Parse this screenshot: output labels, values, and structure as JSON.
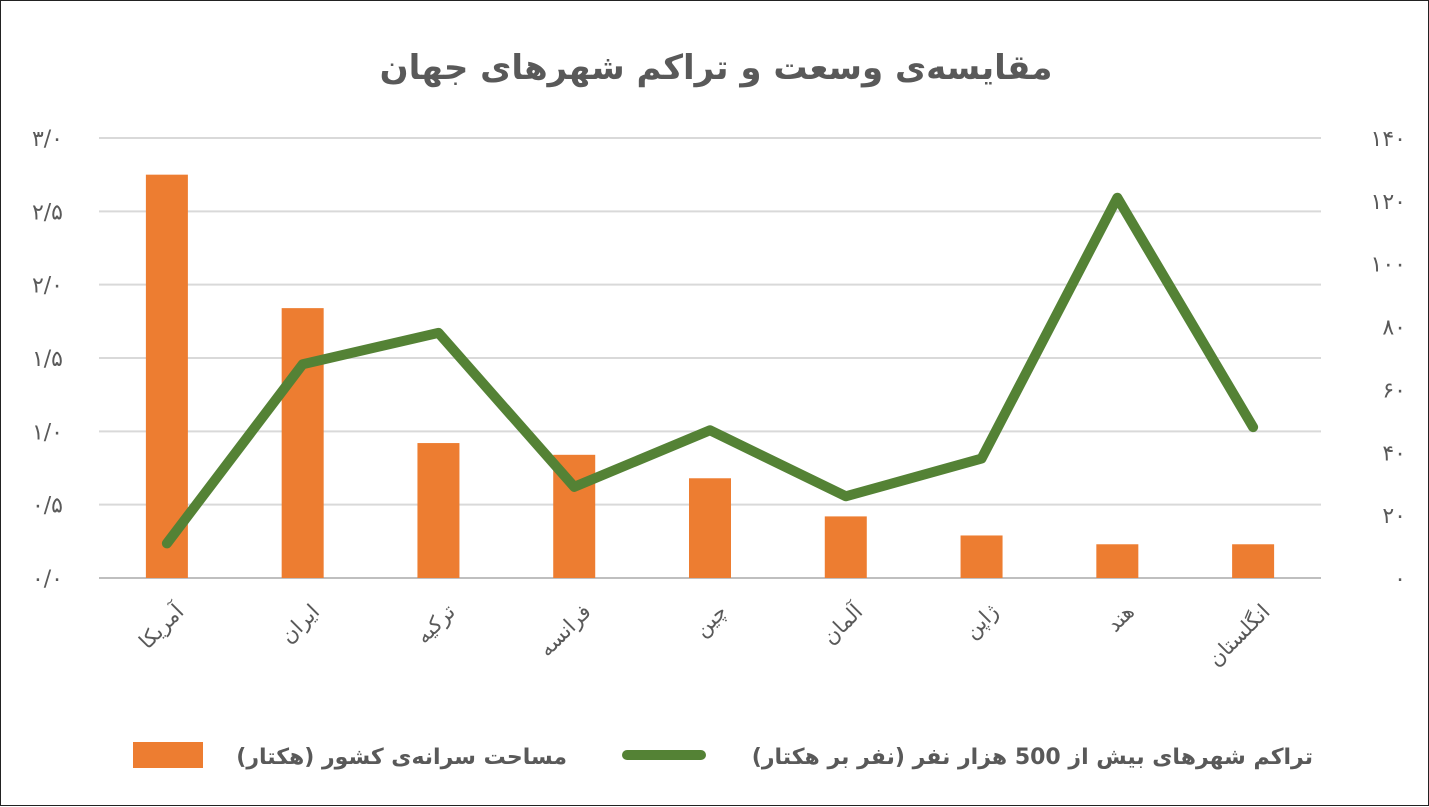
{
  "chart_data": {
    "type": "bar",
    "title": "مقایسه‌ی وسعت و تراکم شهرهای جهان",
    "categories": [
      "آمریکا",
      "ایران",
      "ترکیه",
      "فرانسه",
      "چین",
      "آلمان",
      "ژاپن",
      "هند",
      "انگلستان"
    ],
    "series": [
      {
        "name": "مساحت سرانه‌ی کشور (هکتار)",
        "type": "bar",
        "axis": "left",
        "color": "#ED7D31",
        "values": [
          2.75,
          1.84,
          0.92,
          0.84,
          0.68,
          0.42,
          0.29,
          0.23,
          0.23
        ]
      },
      {
        "name": "تراکم شهرهای بیش از 500 هزار نفر (نفر بر هکتار)",
        "type": "line",
        "axis": "right",
        "color": "#548235",
        "values": [
          11,
          68,
          78,
          29,
          47,
          26,
          38,
          121,
          48
        ]
      }
    ],
    "y_left": {
      "min": 0,
      "max": 3.0,
      "ticks": [
        "۰/۰",
        "۰/۵",
        "۱/۰",
        "۱/۵",
        "۲/۰",
        "۲/۵",
        "۳/۰"
      ]
    },
    "y_right": {
      "min": 0,
      "max": 140,
      "ticks": [
        "۰",
        "۲۰",
        "۴۰",
        "۶۰",
        "۸۰",
        "۱۰۰",
        "۱۲۰",
        "۱۴۰"
      ]
    },
    "grid": true,
    "legend": "bottom"
  }
}
